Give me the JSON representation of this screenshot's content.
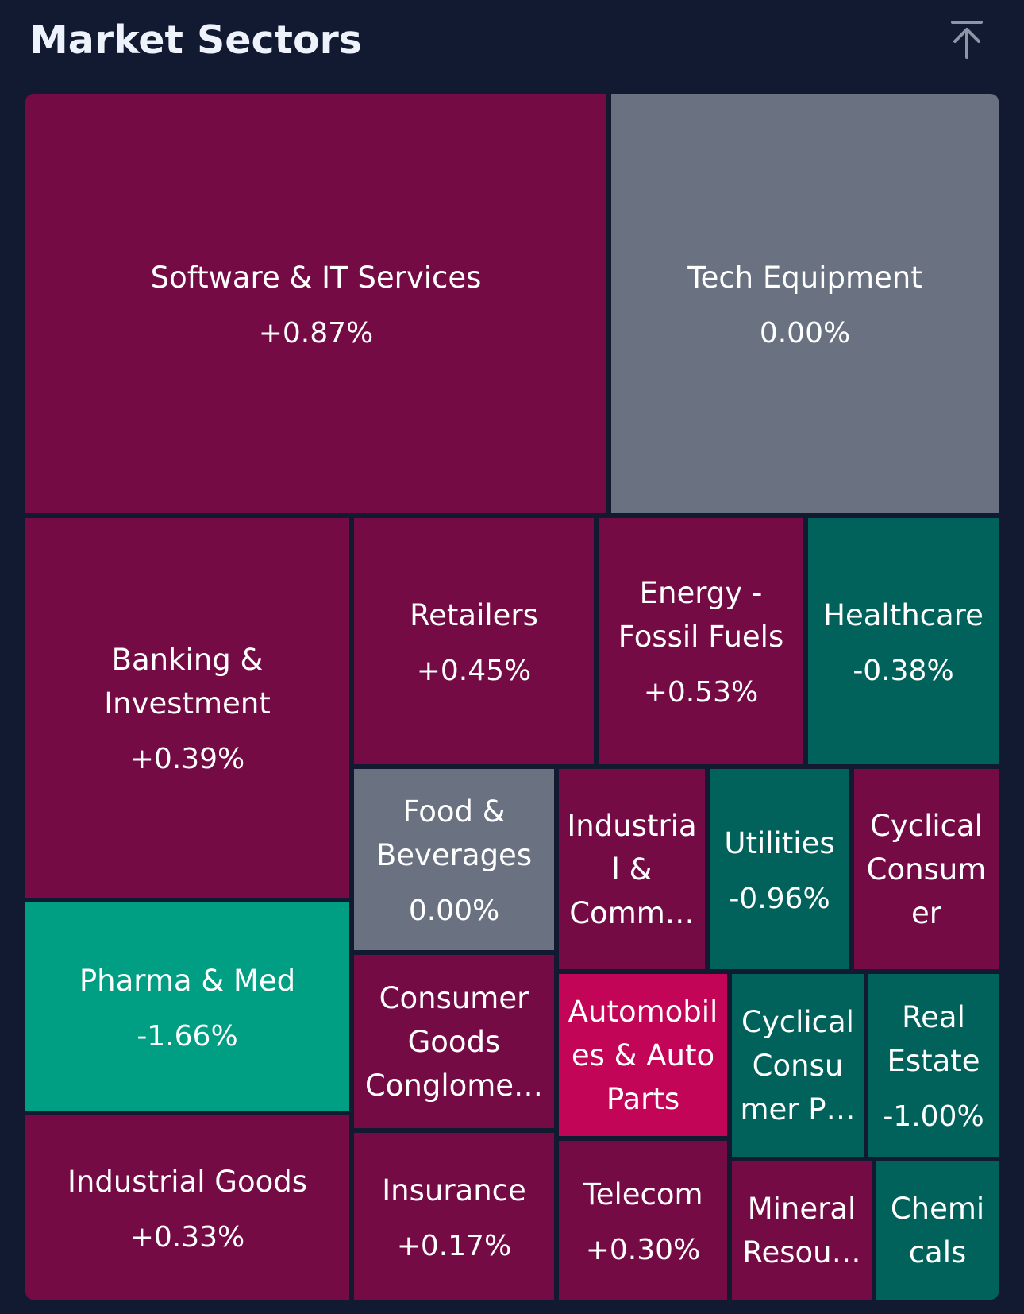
{
  "header": {
    "title": "Market Sectors",
    "scroll_top_icon": "arrow-up-to-line-icon"
  },
  "colors": {
    "background": "#111a30",
    "positive": "#750b44",
    "neutral": "#6a7282",
    "negative": "#00625a",
    "strong_negative": "#009e82",
    "strong_positive": "#c20556"
  },
  "chart_data": {
    "type": "treemap",
    "title": "Market Sectors",
    "items": [
      {
        "name": "Software & IT Services",
        "label": "Software & IT Services",
        "change": "+0.87%",
        "value": 0.87,
        "color": "#750b44"
      },
      {
        "name": "Tech Equipment",
        "label": "Tech Equipment",
        "change": "0.00%",
        "value": 0.0,
        "color": "#6a7282"
      },
      {
        "name": "Banking & Investment",
        "label": "Banking &\nInvestment",
        "change": "+0.39%",
        "value": 0.39,
        "color": "#750b44"
      },
      {
        "name": "Retailers",
        "label": "Retailers",
        "change": "+0.45%",
        "value": 0.45,
        "color": "#750b44"
      },
      {
        "name": "Energy - Fossil Fuels",
        "label": "Energy -\nFossil Fuels",
        "change": "+0.53%",
        "value": 0.53,
        "color": "#750b44"
      },
      {
        "name": "Healthcare",
        "label": "Healthcare",
        "change": "-0.38%",
        "value": -0.38,
        "color": "#00625a"
      },
      {
        "name": "Food & Beverages",
        "label": "Food &\nBeverages",
        "change": "0.00%",
        "value": 0.0,
        "color": "#6a7282"
      },
      {
        "name": "Industrial & Commercial",
        "label": "Industria\nl &\nComm…",
        "change": "",
        "value": null,
        "color": "#750b44"
      },
      {
        "name": "Utilities",
        "label": "Utilities",
        "change": "-0.96%",
        "value": -0.96,
        "color": "#00625a"
      },
      {
        "name": "Cyclical Consumer",
        "label": "Cyclical\nConsum\ner",
        "change": "",
        "value": null,
        "color": "#750b44"
      },
      {
        "name": "Pharma & Med",
        "label": "Pharma & Med",
        "change": "-1.66%",
        "value": -1.66,
        "color": "#009e82"
      },
      {
        "name": "Consumer Goods Conglomerates",
        "label": "Consumer\nGoods\nConglome…",
        "change": "",
        "value": null,
        "color": "#750b44"
      },
      {
        "name": "Automobiles & Auto Parts",
        "label": "Automobil\nes & Auto\nParts",
        "change": "",
        "value": null,
        "color": "#c20556"
      },
      {
        "name": "Cyclical Consumer P...",
        "label": "Cyclical\nConsu\nmer P…",
        "change": "",
        "value": null,
        "color": "#00625a"
      },
      {
        "name": "Real Estate",
        "label": "Real\nEstate",
        "change": "-1.00%",
        "value": -1.0,
        "color": "#00625a"
      },
      {
        "name": "Industrial Goods",
        "label": "Industrial Goods",
        "change": "+0.33%",
        "value": 0.33,
        "color": "#750b44"
      },
      {
        "name": "Insurance",
        "label": "Insurance",
        "change": "+0.17%",
        "value": 0.17,
        "color": "#750b44"
      },
      {
        "name": "Telecom",
        "label": "Telecom",
        "change": "+0.30%",
        "value": 0.3,
        "color": "#750b44"
      },
      {
        "name": "Mineral Resources",
        "label": "Mineral\nResou…",
        "change": "",
        "value": null,
        "color": "#750b44"
      },
      {
        "name": "Chemicals",
        "label": "Chemi\ncals",
        "change": "",
        "value": null,
        "color": "#00625a"
      }
    ]
  }
}
